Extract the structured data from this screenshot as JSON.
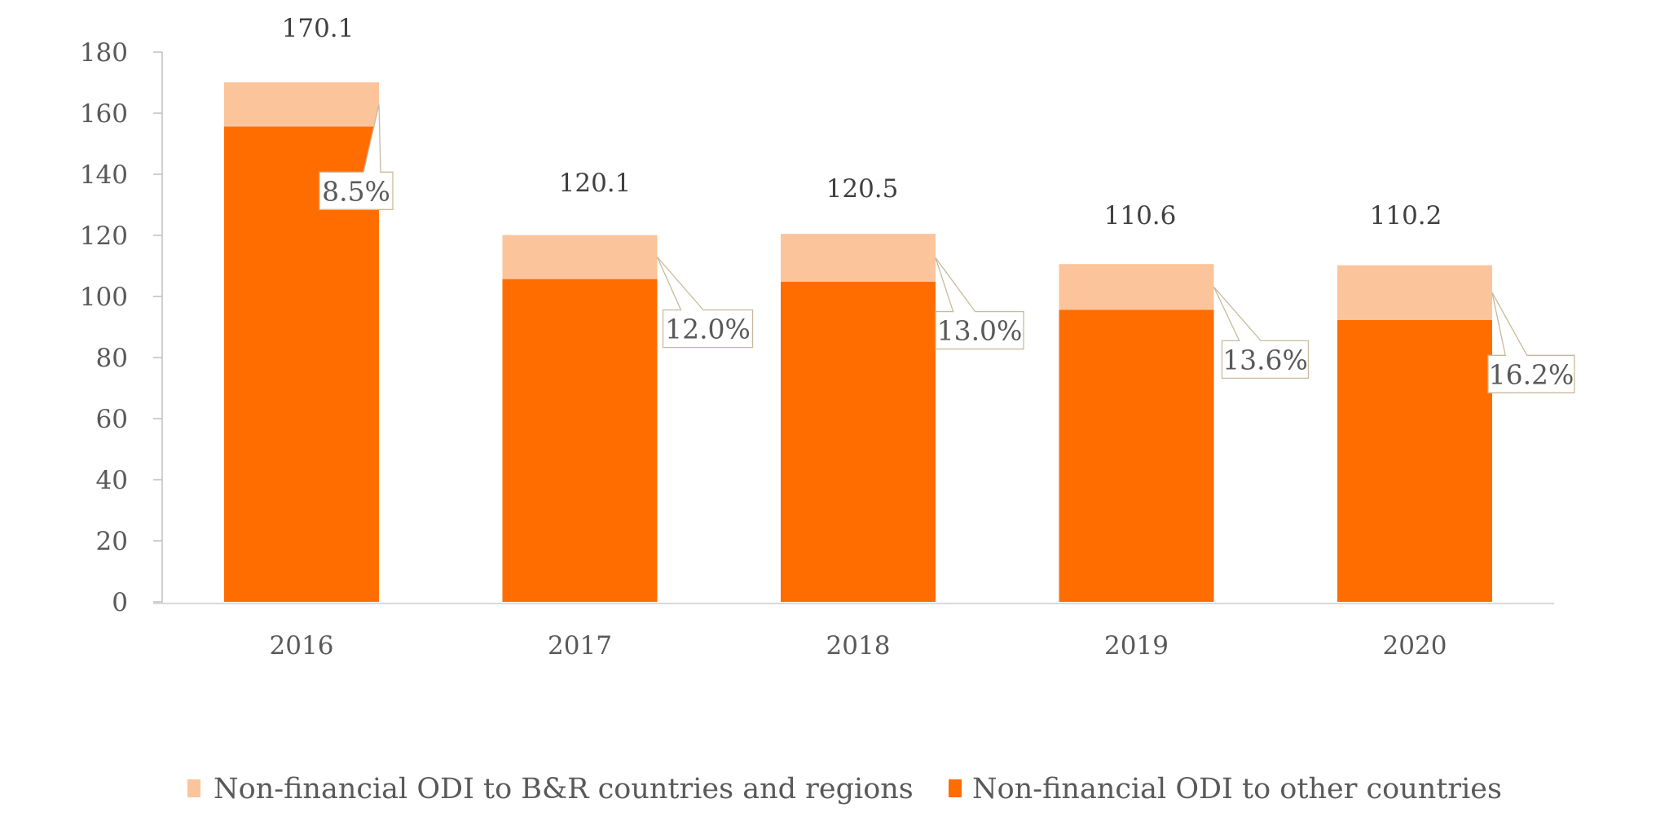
{
  "chart_data": {
    "type": "bar",
    "stacked": true,
    "title": "",
    "xlabel": "",
    "ylabel": "",
    "ylim": [
      0,
      180
    ],
    "yticks": [
      0,
      20,
      40,
      60,
      80,
      100,
      120,
      140,
      160,
      180
    ],
    "ytick_labels": [
      "0",
      "20",
      "40",
      "60",
      "80",
      "100",
      "120",
      "140",
      "160",
      "180"
    ],
    "categories": [
      "2016",
      "2017",
      "2018",
      "2019",
      "2020"
    ],
    "totals": [
      170.1,
      120.1,
      120.5,
      110.6,
      110.2
    ],
    "total_labels": [
      "170.1",
      "120.1",
      "120.5",
      "110.6",
      "110.2"
    ],
    "share_labels": [
      "8.5%",
      "12.0%",
      "13.0%",
      "13.6%",
      "16.2%"
    ],
    "series": [
      {
        "name": "Non-financial ODI to other countries",
        "color": "#FF6D00",
        "values": [
          155.6,
          105.7,
          104.8,
          95.6,
          92.3
        ]
      },
      {
        "name": "Non-financial ODI to B&R countries and regions",
        "color": "#FBC49A",
        "values": [
          14.5,
          14.4,
          15.7,
          15.0,
          17.9
        ]
      }
    ],
    "legend": {
      "position": "bottom",
      "entries": [
        {
          "label": "Non-financial ODI to B&R countries and regions",
          "color": "#FBC49A"
        },
        {
          "label": "Non-financial ODI to other countries",
          "color": "#FF6D00"
        }
      ]
    },
    "grid": false,
    "colors": {
      "axis": "#BFBFBF",
      "baseline": "#D9D9D9",
      "callout_border": "#C9B99B"
    }
  }
}
